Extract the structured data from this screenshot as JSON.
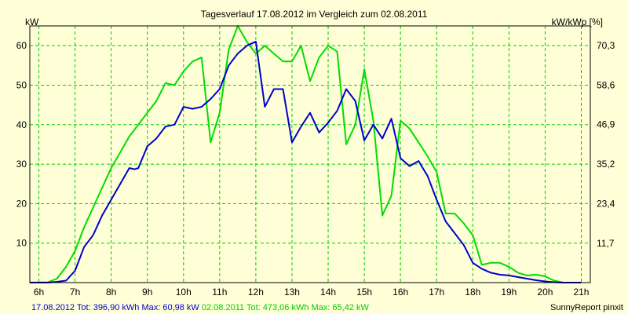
{
  "chart_data": {
    "type": "line",
    "title": "Tagesverlauf 17.08.2012 im Vergleich zum 02.08.2011",
    "ylabel_left": "kW",
    "ylabel_right": "kW/kWp [%]",
    "x_ticks": [
      "6h",
      "7h",
      "8h",
      "9h",
      "10h",
      "11h",
      "12h",
      "13h",
      "14h",
      "15h",
      "16h",
      "17h",
      "18h",
      "19h",
      "20h",
      "21h"
    ],
    "y_ticks_left": [
      "10",
      "20",
      "30",
      "40",
      "50",
      "60"
    ],
    "y_ticks_right": [
      "11,7",
      "23,4",
      "35,2",
      "46,9",
      "58,6",
      "70,3"
    ],
    "xlim": [
      5.75,
      21.25
    ],
    "ylim": [
      0,
      65
    ],
    "y_left_tick_values": [
      10,
      20,
      30,
      40,
      50,
      60
    ],
    "y_right_tick_values": [
      11.7,
      23.4,
      35.2,
      46.9,
      58.6,
      70.3
    ],
    "right_axis_factor": 1.172,
    "grid": true,
    "series": [
      {
        "name": "17.08.2012",
        "color": "#0000cc",
        "x": [
          5.75,
          6.25,
          6.5,
          6.75,
          7.0,
          7.25,
          7.5,
          7.75,
          8.0,
          8.25,
          8.5,
          8.65,
          8.75,
          9.0,
          9.25,
          9.5,
          9.75,
          10.0,
          10.25,
          10.5,
          10.75,
          11.0,
          11.25,
          11.5,
          11.75,
          12.0,
          12.25,
          12.5,
          12.75,
          13.0,
          13.25,
          13.5,
          13.75,
          14.0,
          14.25,
          14.5,
          14.75,
          15.0,
          15.25,
          15.5,
          15.75,
          16.0,
          16.25,
          16.5,
          16.75,
          17.0,
          17.25,
          17.5,
          17.75,
          18.0,
          18.25,
          18.5,
          18.75,
          19.0,
          19.25,
          19.5,
          19.75,
          20.0,
          20.25,
          20.5,
          20.75,
          21.0
        ],
        "values": [
          0,
          0,
          0.2,
          0.5,
          3,
          9,
          12,
          17,
          21,
          25,
          29,
          28.7,
          29,
          34.5,
          36.5,
          39.5,
          40,
          44.5,
          44,
          44.5,
          46.5,
          49,
          55,
          58,
          60,
          61,
          44.5,
          49,
          49,
          35.5,
          39.5,
          43,
          38,
          40.5,
          43.5,
          49,
          46,
          36,
          40,
          36.5,
          41.5,
          31.5,
          29.5,
          30.8,
          27,
          21,
          15.5,
          12.5,
          9.5,
          5,
          3.5,
          2.5,
          2,
          1.8,
          1.4,
          1.0,
          0.6,
          0.3,
          0.1,
          0,
          0,
          0
        ]
      },
      {
        "name": "02.08.2011",
        "color": "#00dd00",
        "x": [
          5.75,
          6.25,
          6.5,
          6.75,
          7.0,
          7.25,
          7.5,
          7.75,
          8.0,
          8.25,
          8.5,
          8.75,
          9.0,
          9.25,
          9.5,
          9.75,
          10.0,
          10.25,
          10.5,
          10.75,
          11.0,
          11.25,
          11.5,
          11.75,
          12.0,
          12.25,
          12.5,
          12.75,
          13.0,
          13.25,
          13.5,
          13.75,
          14.0,
          14.25,
          14.5,
          14.75,
          15.0,
          15.25,
          15.5,
          15.75,
          16.0,
          16.25,
          16.5,
          16.75,
          17.0,
          17.25,
          17.5,
          17.75,
          18.0,
          18.25,
          18.5,
          18.75,
          19.0,
          19.25,
          19.5,
          19.75,
          20.0,
          20.25,
          20.5,
          20.75,
          21.0
        ],
        "values": [
          0,
          0.1,
          1,
          4,
          8,
          14,
          19,
          24,
          29,
          33,
          37,
          40,
          43,
          46,
          50.5,
          50,
          53.5,
          56,
          57,
          35.5,
          43,
          59,
          65,
          61,
          58,
          60,
          58,
          56,
          56,
          60,
          51,
          57,
          60,
          58.5,
          35,
          40,
          54,
          41,
          17,
          22,
          41,
          39,
          35.5,
          32,
          28,
          17.5,
          17.5,
          15,
          12,
          4.5,
          5,
          5,
          4,
          2.5,
          1.8,
          2,
          1.6,
          0.5,
          0,
          0,
          0
        ]
      }
    ]
  },
  "footer": {
    "series1_label": "17.08.2012 Tot: 396,90 kWh Max: 60,98 kW",
    "series2_label": "02.08.2011 Tot: 473,06 kWh Max: 65,42 kW",
    "credit": "SunnyReport pinxit"
  },
  "colors": {
    "background": "#ffffd7",
    "grid": "#00cc00",
    "series1_text": "#0000cc",
    "series2_text": "#00cc00"
  }
}
